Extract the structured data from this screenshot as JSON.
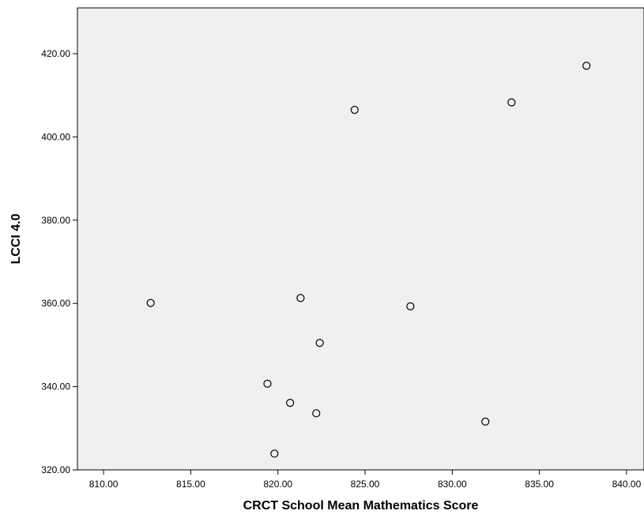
{
  "chart_data": {
    "type": "scatter",
    "title": "",
    "xlabel": "CRCT School Mean Mathematics Score",
    "ylabel": "LCCI 4.0",
    "xlim": [
      808.5,
      841.0
    ],
    "ylim": [
      320.0,
      431.0
    ],
    "x_ticks": [
      810,
      815,
      820,
      825,
      830,
      835,
      840
    ],
    "x_tick_labels": [
      "810.00",
      "815.00",
      "820.00",
      "825.00",
      "830.00",
      "835.00",
      "840.00"
    ],
    "y_ticks": [
      320,
      340,
      360,
      380,
      400,
      420
    ],
    "y_tick_labels": [
      "320.00",
      "340.00",
      "360.00",
      "380.00",
      "400.00",
      "420.00"
    ],
    "grid": false,
    "background_color": "#f0f0f0",
    "marker": "open-circle",
    "points": [
      {
        "x": 812.7,
        "y": 360.1
      },
      {
        "x": 819.4,
        "y": 340.7
      },
      {
        "x": 819.8,
        "y": 323.9
      },
      {
        "x": 820.7,
        "y": 336.1
      },
      {
        "x": 821.3,
        "y": 361.3
      },
      {
        "x": 822.2,
        "y": 333.6
      },
      {
        "x": 822.4,
        "y": 350.5
      },
      {
        "x": 824.4,
        "y": 406.5
      },
      {
        "x": 827.6,
        "y": 359.3
      },
      {
        "x": 831.9,
        "y": 331.6
      },
      {
        "x": 833.4,
        "y": 408.3
      },
      {
        "x": 837.7,
        "y": 417.1
      }
    ]
  }
}
